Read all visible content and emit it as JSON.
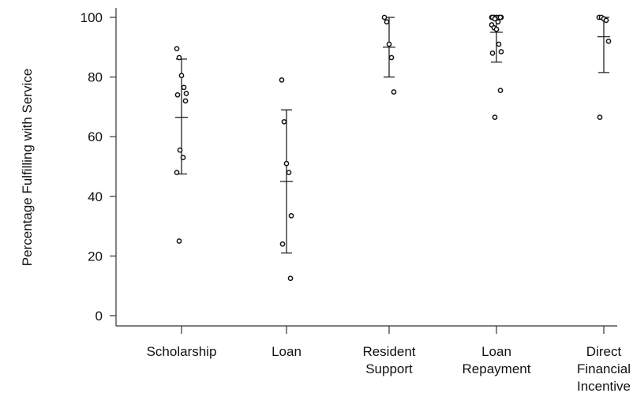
{
  "chart_data": {
    "type": "scatter",
    "title": "",
    "xlabel": "",
    "ylabel": "Percentage Fulfilling with Service",
    "ylim": [
      0,
      100
    ],
    "yticks": [
      "0",
      "20",
      "40",
      "60",
      "80",
      "100"
    ],
    "grid": false,
    "legend": "none",
    "categories": [
      {
        "lines": [
          "Scholarship"
        ]
      },
      {
        "lines": [
          "Loan"
        ]
      },
      {
        "lines": [
          "Resident",
          "Support"
        ]
      },
      {
        "lines": [
          "Loan",
          "Repayment"
        ]
      },
      {
        "lines": [
          "Direct",
          "Financial",
          "Incentive"
        ]
      }
    ],
    "series": [
      {
        "category_index": 0,
        "points": [
          89.5,
          86.5,
          80.5,
          76.5,
          74.5,
          74,
          72,
          55.5,
          53,
          48,
          25
        ],
        "mean": 66.5,
        "sd_low": 47.5,
        "sd_high": 86
      },
      {
        "category_index": 1,
        "points": [
          79,
          65,
          51,
          48,
          33.5,
          24,
          12.5
        ],
        "mean": 45,
        "sd_low": 21,
        "sd_high": 69
      },
      {
        "category_index": 2,
        "points": [
          100,
          98.5,
          91,
          86.5,
          75
        ],
        "mean": 90,
        "sd_low": 80,
        "sd_high": 100
      },
      {
        "category_index": 3,
        "points": [
          100,
          100,
          100,
          100,
          100,
          100,
          100,
          99.5,
          98.5,
          97.5,
          96.5,
          96,
          91,
          88.5,
          88,
          75.5,
          66.5
        ],
        "mean": 95,
        "sd_low": 85,
        "sd_high": 100
      },
      {
        "category_index": 4,
        "points": [
          100,
          100,
          99.5,
          99,
          92,
          66.5
        ],
        "mean": 93.5,
        "sd_low": 81.5,
        "sd_high": 100
      }
    ]
  }
}
